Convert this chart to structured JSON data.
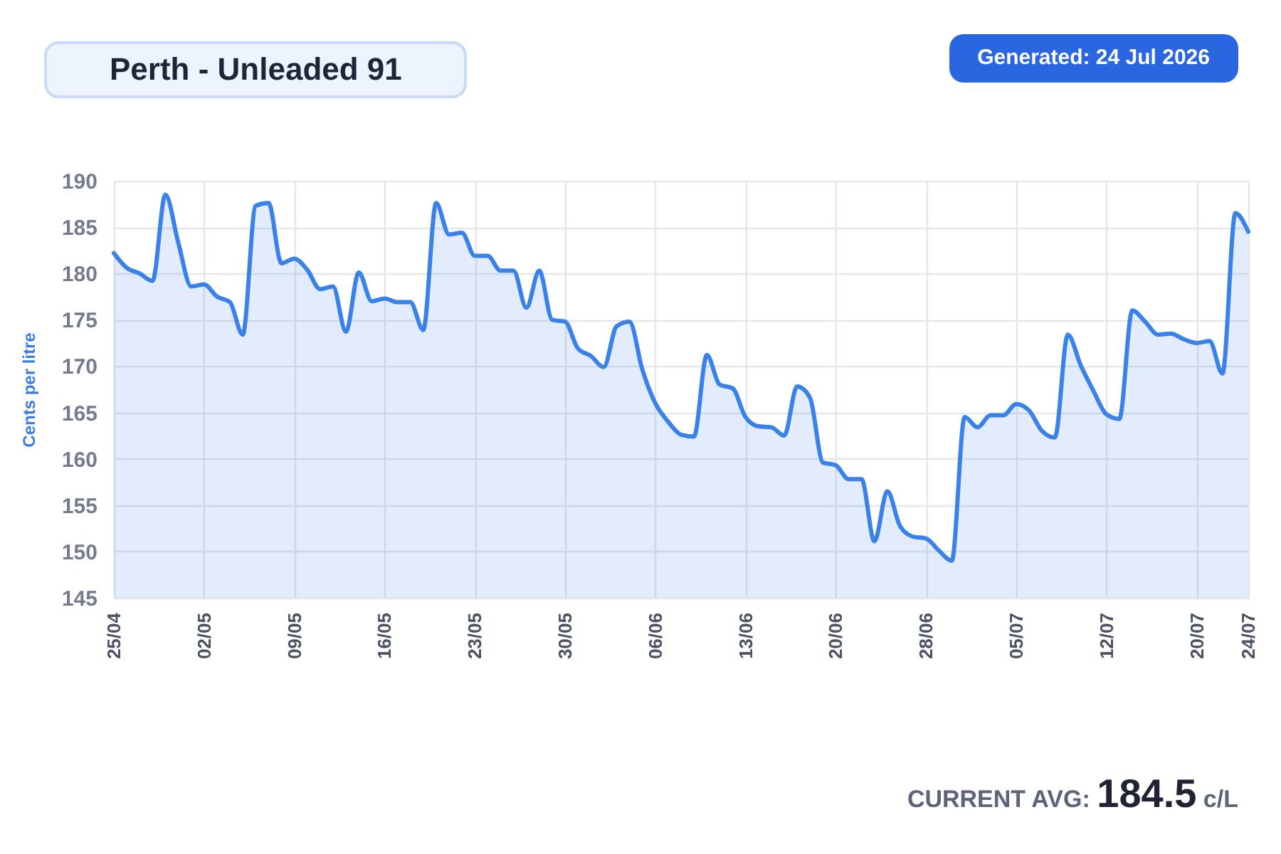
{
  "chart_data": {
    "type": "area",
    "title": "Perth - Unleaded 91",
    "ylabel": "Cents per litre",
    "annotations": [
      "Generated: 24 Jul 2026",
      "CURRENT AVG: 184.5 c/L"
    ],
    "categories": [
      "25/04",
      null,
      null,
      null,
      null,
      null,
      null,
      "02/05",
      null,
      null,
      null,
      null,
      null,
      null,
      "09/05",
      null,
      null,
      null,
      null,
      null,
      null,
      "16/05",
      null,
      null,
      null,
      null,
      null,
      null,
      "23/05",
      null,
      null,
      null,
      null,
      null,
      null,
      "30/05",
      null,
      null,
      null,
      null,
      null,
      null,
      "06/06",
      null,
      null,
      null,
      null,
      null,
      null,
      "13/06",
      null,
      null,
      null,
      null,
      null,
      null,
      "20/06",
      null,
      null,
      null,
      null,
      null,
      null,
      "28/06",
      null,
      null,
      null,
      null,
      null,
      null,
      "05/07",
      null,
      null,
      null,
      null,
      null,
      null,
      "12/07",
      null,
      null,
      null,
      null,
      null,
      null,
      "20/07",
      null,
      null,
      null,
      "24/07"
    ],
    "values": [
      182.2,
      180.6,
      180.0,
      179.2,
      188.5,
      183.3,
      178.6,
      178.8,
      177.5,
      176.9,
      173.4,
      187.3,
      187.6,
      181.1,
      181.6,
      180.4,
      178.3,
      178.6,
      173.7,
      180.1,
      177.0,
      177.3,
      176.9,
      176.9,
      173.9,
      187.6,
      184.2,
      184.4,
      181.9,
      181.9,
      180.3,
      180.3,
      176.3,
      180.3,
      175.0,
      174.8,
      171.9,
      171.1,
      169.9,
      174.3,
      174.8,
      169.6,
      166.0,
      164.0,
      162.6,
      162.4,
      171.2,
      168.0,
      167.6,
      164.5,
      163.5,
      163.4,
      162.5,
      167.8,
      166.6,
      159.6,
      159.3,
      157.8,
      157.8,
      151.1,
      156.5,
      152.7,
      151.6,
      151.4,
      150.1,
      149.0,
      164.5,
      163.4,
      164.7,
      164.7,
      165.9,
      165.2,
      163.0,
      162.3,
      173.4,
      170.1,
      167.3,
      164.8,
      164.3,
      176.0,
      174.8,
      173.4,
      173.5,
      172.9,
      172.5,
      172.7,
      169.2,
      186.5,
      184.5
    ],
    "color": "#3b82e8",
    "ylim": [
      145,
      190
    ],
    "yticks": [
      145,
      150,
      155,
      160,
      165,
      170,
      175,
      180,
      185,
      190
    ],
    "grid": true
  }
}
